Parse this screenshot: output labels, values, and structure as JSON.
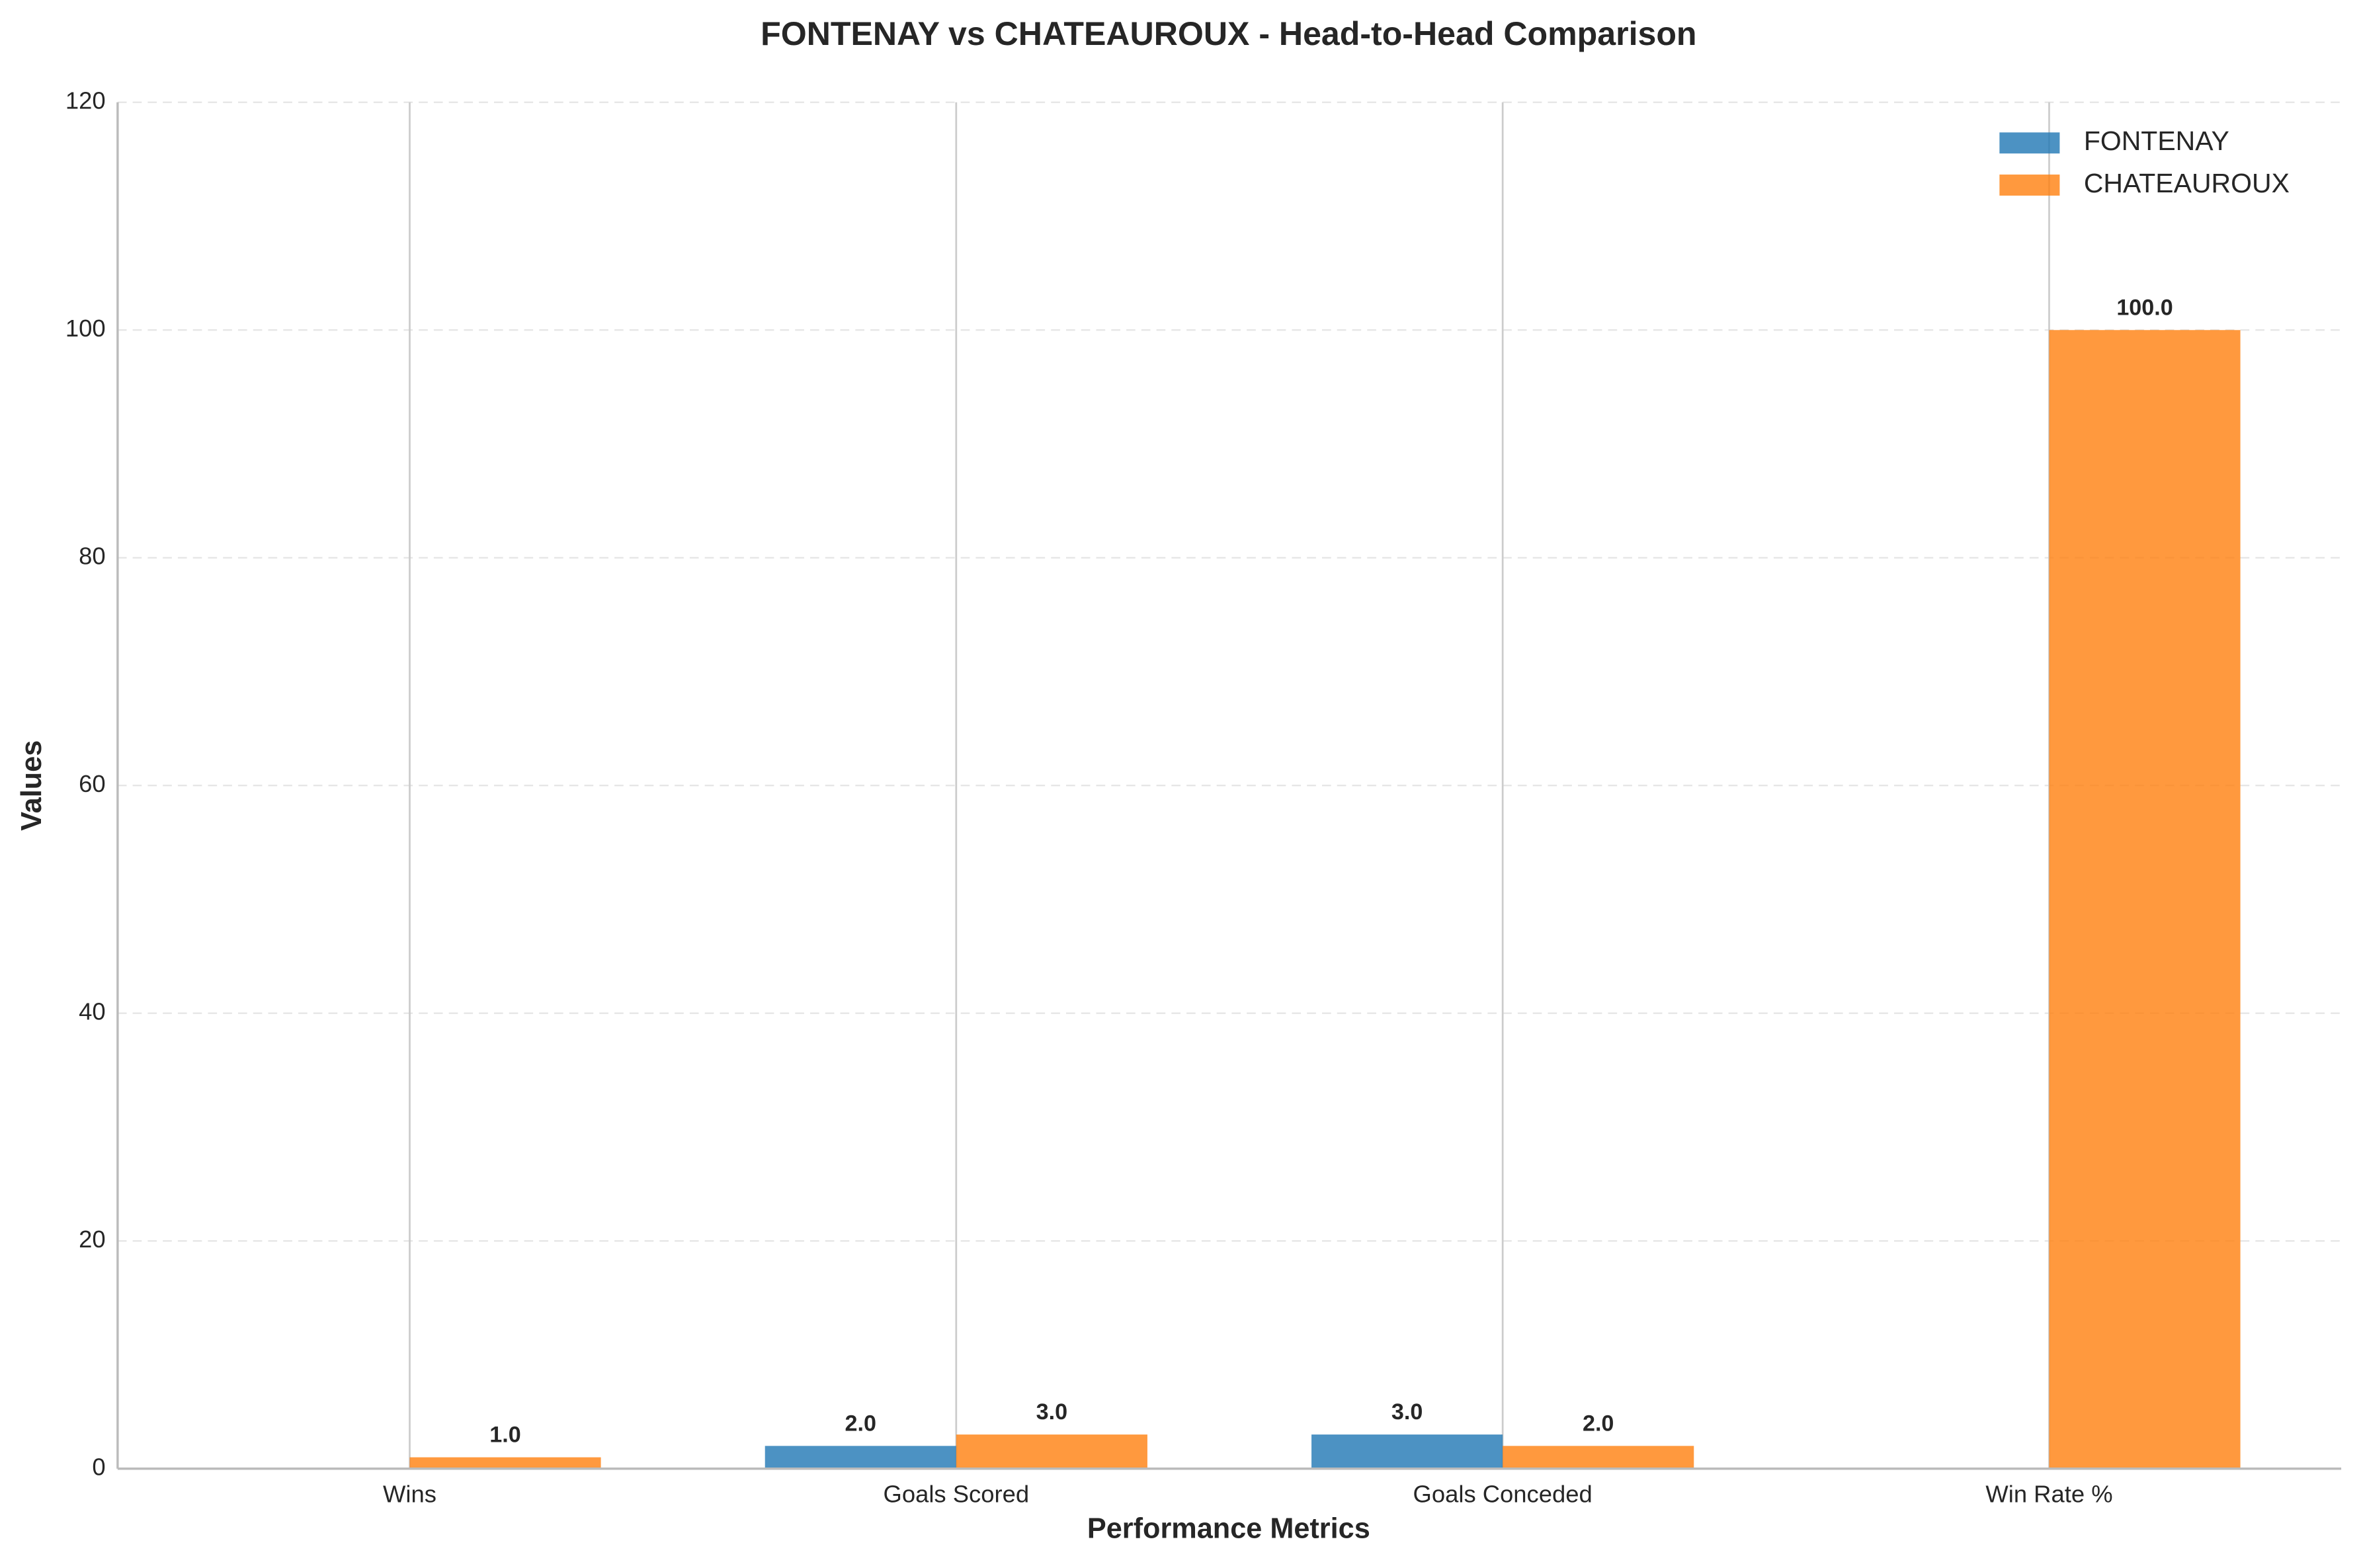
{
  "chart_data": {
    "type": "bar",
    "title": "FONTENAY vs CHATEAUROUX - Head-to-Head Comparison",
    "x_label": "Performance Metrics",
    "y_label": "Values",
    "categories": [
      "Wins",
      "Goals Scored",
      "Goals Conceded",
      "Win Rate %"
    ],
    "series": [
      {
        "name": "FONTENAY",
        "color": "#1f77b4",
        "values": [
          0,
          2,
          3,
          0
        ],
        "value_labels": [
          null,
          "2.0",
          "3.0",
          null
        ]
      },
      {
        "name": "CHATEAUROUX",
        "color": "#ff7f0e",
        "values": [
          1,
          3,
          2,
          100
        ],
        "value_labels": [
          "1.0",
          "3.0",
          "2.0",
          "100.0"
        ]
      }
    ],
    "ylim": [
      0,
      120
    ],
    "yticks": [
      0,
      20,
      40,
      60,
      80,
      100,
      120
    ],
    "grid": true,
    "legend": "upper right"
  }
}
